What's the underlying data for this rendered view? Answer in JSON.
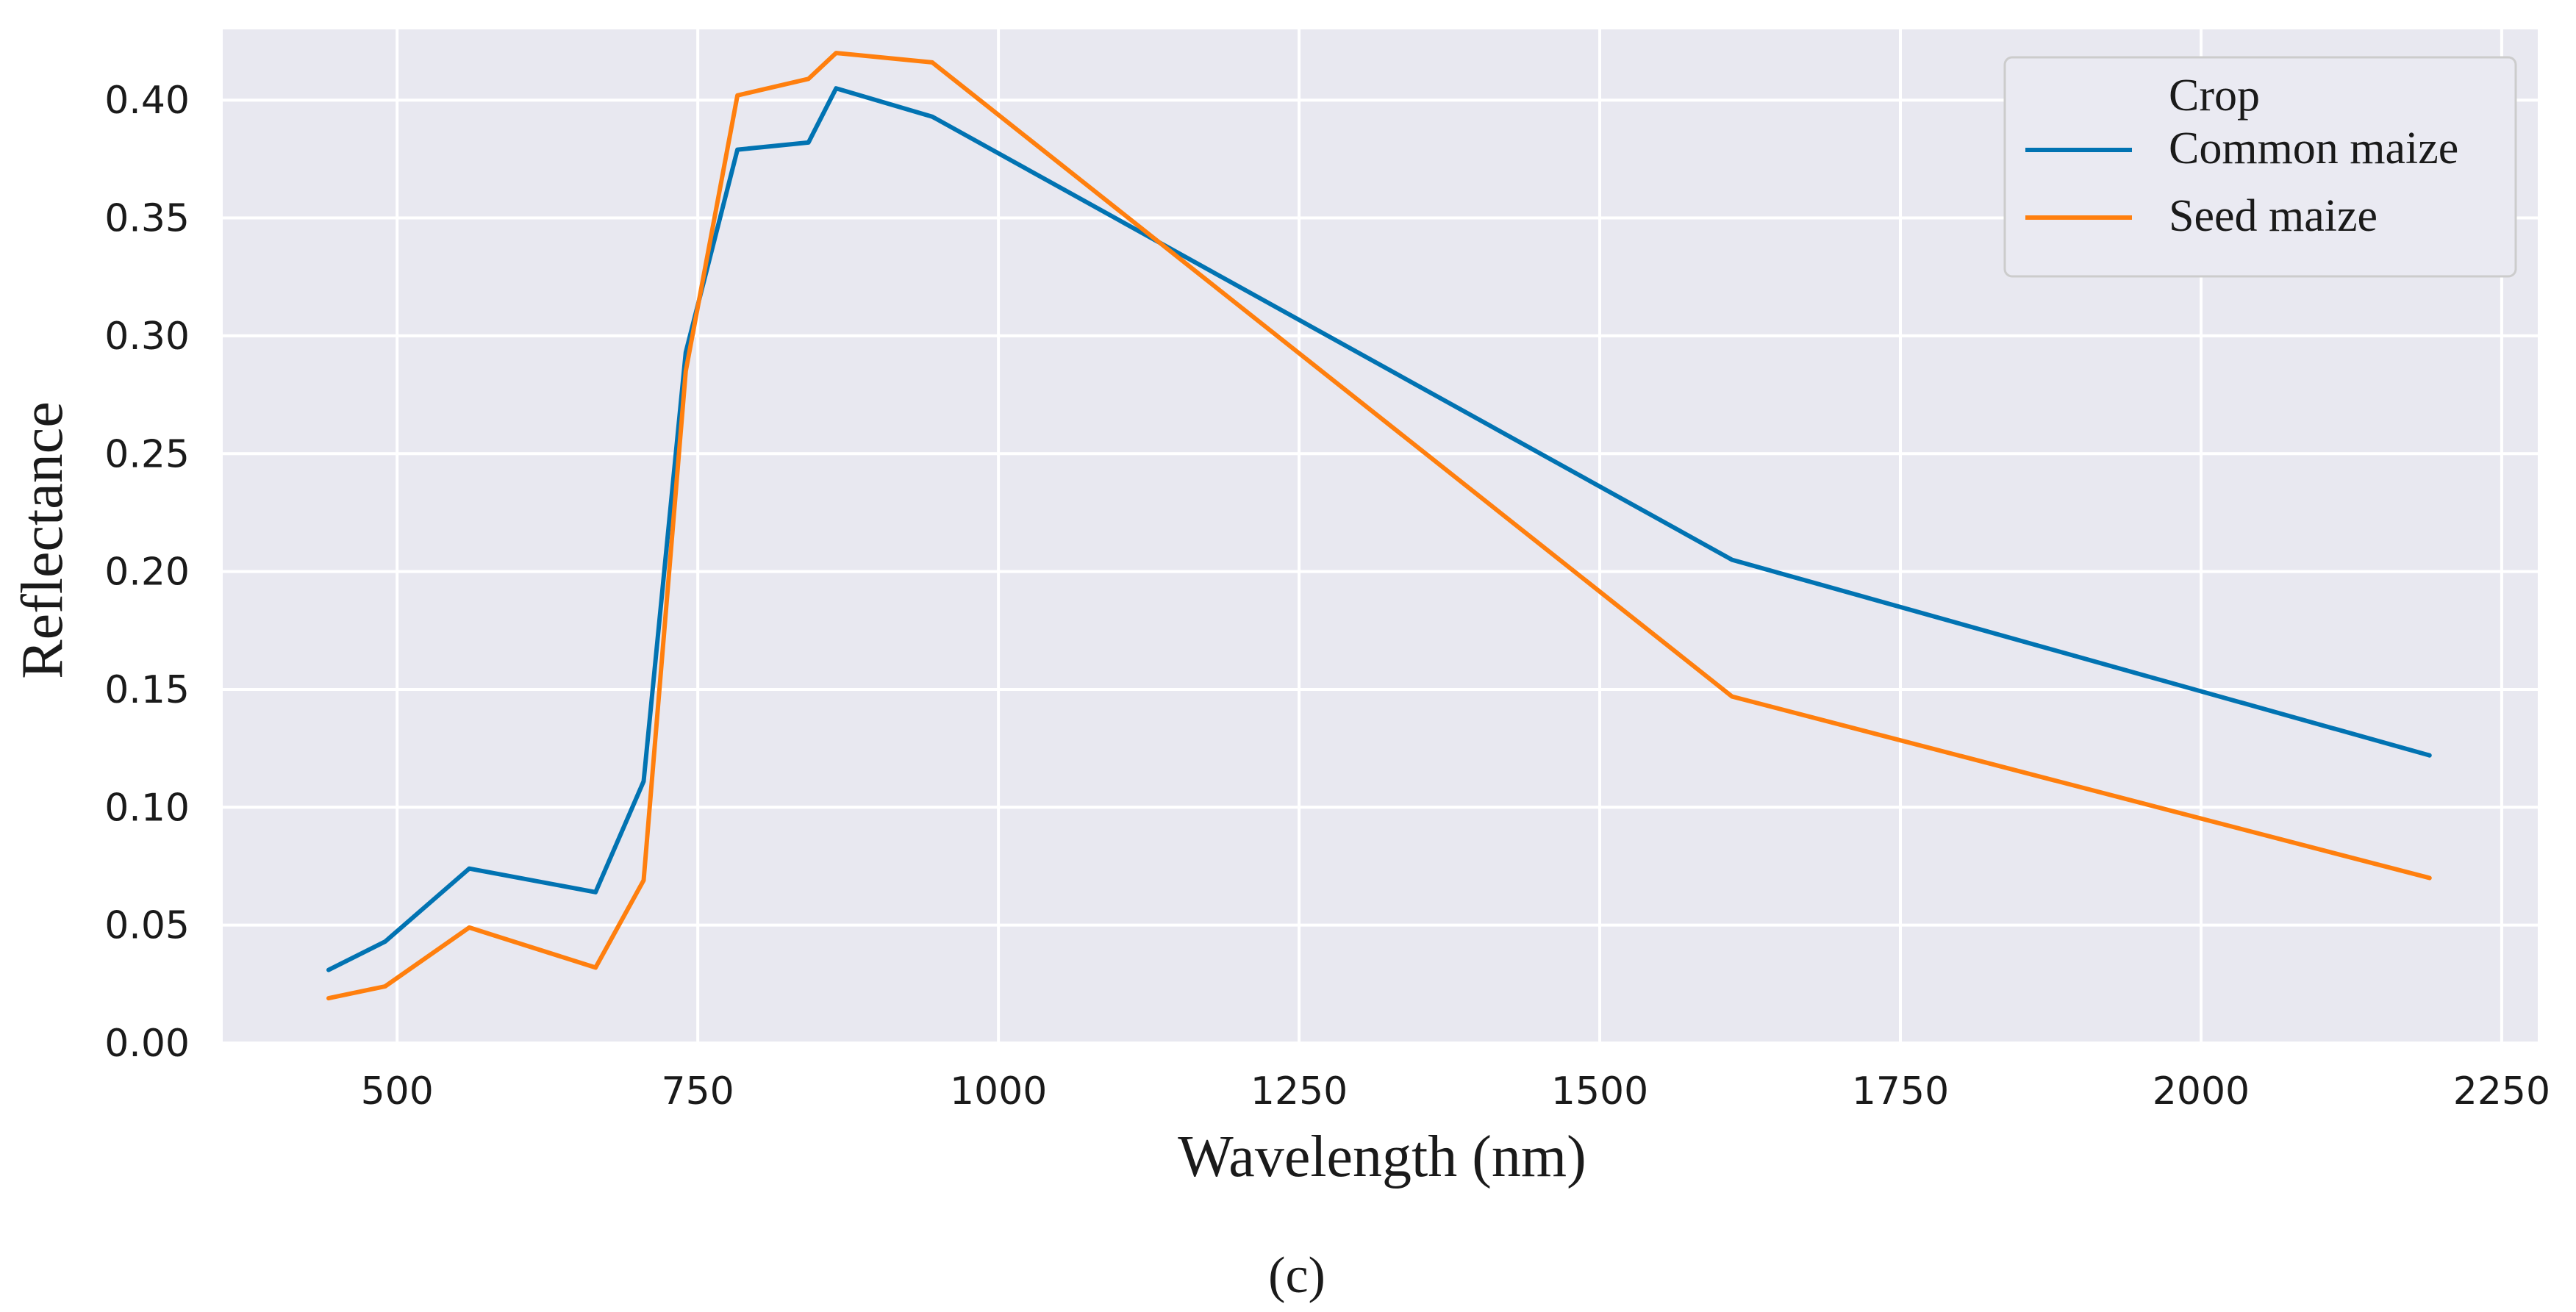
{
  "chart_data": {
    "type": "line",
    "title": "",
    "xlabel": "Wavelength (nm)",
    "ylabel": "Reflectance",
    "xlim": [
      355,
      2280
    ],
    "ylim": [
      0.0,
      0.43
    ],
    "xticks": [
      500,
      750,
      1000,
      1250,
      1500,
      1750,
      2000,
      2250
    ],
    "yticks": [
      0.0,
      0.05,
      0.1,
      0.15,
      0.2,
      0.25,
      0.3,
      0.35,
      0.4
    ],
    "xtick_labels": [
      "500",
      "750",
      "1000",
      "1250",
      "1500",
      "1750",
      "2000",
      "2250"
    ],
    "ytick_labels": [
      "0.00",
      "0.05",
      "0.10",
      "0.15",
      "0.20",
      "0.25",
      "0.30",
      "0.35",
      "0.40"
    ],
    "grid": true,
    "legend": {
      "title": "Crop",
      "position": "top-right"
    },
    "x": [
      443,
      490,
      560,
      665,
      705,
      740,
      783,
      842,
      865,
      945,
      1610,
      2190
    ],
    "series": [
      {
        "name": "Common maize",
        "color": "#0173b2",
        "values": [
          0.031,
          0.043,
          0.074,
          0.064,
          0.111,
          0.293,
          0.379,
          0.382,
          0.405,
          0.393,
          0.205,
          0.122
        ]
      },
      {
        "name": "Seed maize",
        "color": "#ff7f0e",
        "values": [
          0.019,
          0.024,
          0.049,
          0.032,
          0.069,
          0.285,
          0.402,
          0.409,
          0.42,
          0.416,
          0.147,
          0.07
        ]
      }
    ]
  },
  "caption": "(c)",
  "style": {
    "plot_background": "#e8e8f0",
    "grid_color": "#ffffff",
    "legend_background": "#eaeaf2",
    "legend_border": "#cccccc"
  }
}
